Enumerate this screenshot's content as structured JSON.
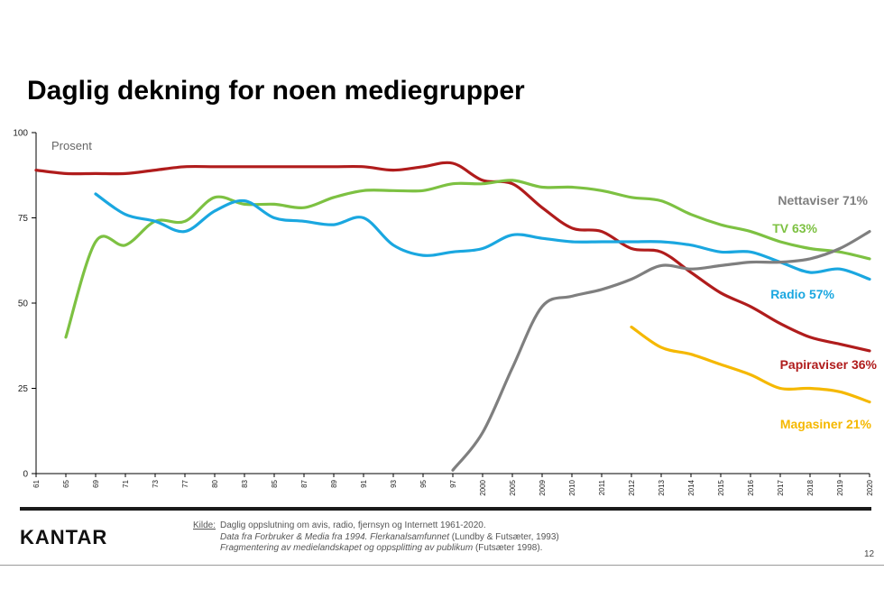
{
  "slide": {
    "title": "Daglig dekning for noen mediegrupper",
    "logo": "KANTAR",
    "page_number": "12",
    "source": {
      "label": "Kilde:",
      "line1": "Daglig oppslutning om avis, radio, fjernsyn  og Internett 1961-2020.",
      "line2_italic": "Data fra Forbruker & Media fra 1994. Flerkanalsamfunnet",
      "line2_rest": " (Lundby & Futsæter, 1993)",
      "line3_italic": "Fragmentering av medielandskapet og oppsplitting av publikum",
      "line3_rest": " (Futsæter 1998)."
    }
  },
  "chart_data": {
    "type": "line",
    "ylabel": "Prosent",
    "ylim": [
      0,
      100
    ],
    "yticks": [
      "0",
      "25",
      "50",
      "75",
      "100"
    ],
    "categories": [
      "61",
      "65",
      "69",
      "71",
      "73",
      "77",
      "80",
      "83",
      "85",
      "87",
      "89",
      "91",
      "93",
      "95",
      "97",
      "2000",
      "2005",
      "2009",
      "2010",
      "2011",
      "2012",
      "2013",
      "2014",
      "2015",
      "2016",
      "2017",
      "2018",
      "2019",
      "2020"
    ],
    "series": [
      {
        "name": "Papiraviser",
        "label": "Papiraviser  36%",
        "color": "#b01c1c",
        "values": [
          89,
          88,
          88,
          88,
          89,
          90,
          90,
          90,
          90,
          90,
          90,
          90,
          89,
          90,
          91,
          86,
          85,
          78,
          72,
          71,
          66,
          65,
          59,
          53,
          49,
          44,
          40,
          38,
          36
        ]
      },
      {
        "name": "TV",
        "label": "TV 63%",
        "color": "#7dc142",
        "values": [
          null,
          40,
          68,
          67,
          74,
          74,
          81,
          79,
          79,
          78,
          81,
          83,
          83,
          83,
          85,
          85,
          86,
          84,
          84,
          83,
          81,
          80,
          76,
          73,
          71,
          68,
          66,
          65,
          63
        ]
      },
      {
        "name": "Radio",
        "label": "Radio 57%",
        "color": "#1aa7e0",
        "values": [
          null,
          null,
          82,
          76,
          74,
          71,
          77,
          80,
          75,
          74,
          73,
          75,
          67,
          64,
          65,
          66,
          70,
          69,
          68,
          68,
          68,
          68,
          67,
          65,
          65,
          62,
          59,
          60,
          57
        ]
      },
      {
        "name": "Nettaviser",
        "label": "Nettaviser 71%",
        "color": "#7f7f7f",
        "values": [
          null,
          null,
          null,
          null,
          null,
          null,
          null,
          null,
          null,
          null,
          null,
          null,
          null,
          null,
          1,
          12,
          31,
          49,
          52,
          54,
          57,
          61,
          60,
          61,
          62,
          62,
          63,
          66,
          71
        ]
      },
      {
        "name": "Magasiner",
        "label": "Magasiner 21%",
        "color": "#f5b800",
        "values": [
          null,
          null,
          null,
          null,
          null,
          null,
          null,
          null,
          null,
          null,
          null,
          null,
          null,
          null,
          null,
          null,
          null,
          null,
          null,
          null,
          43,
          37,
          35,
          32,
          29,
          25,
          25,
          24,
          21
        ]
      }
    ]
  }
}
